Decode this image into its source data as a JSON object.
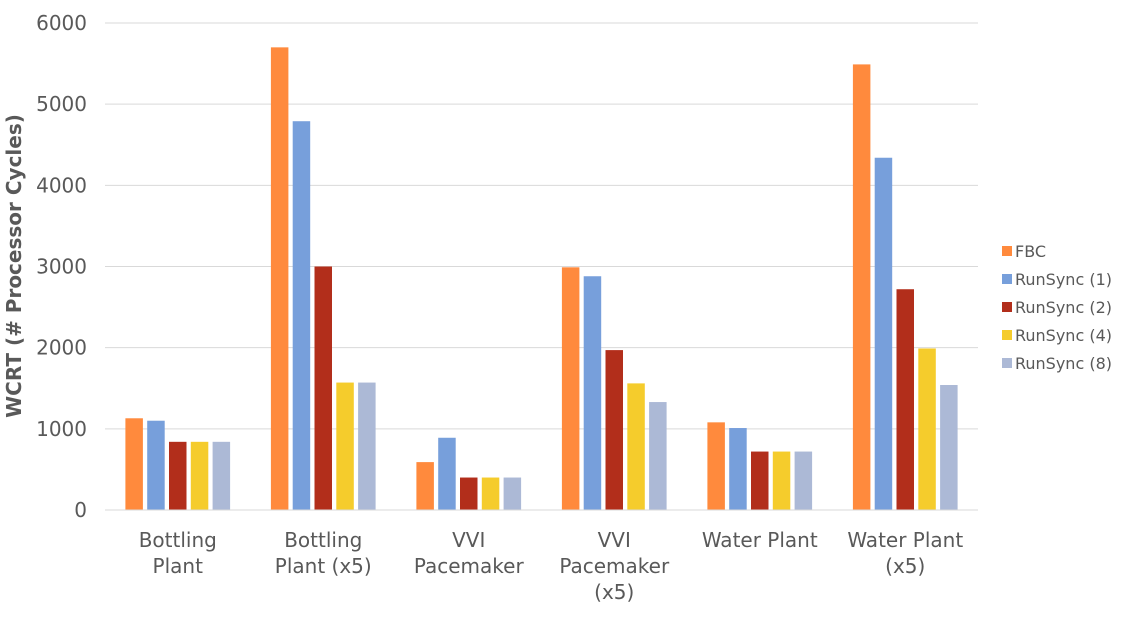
{
  "chart_data": {
    "type": "bar",
    "title": "",
    "xlabel": "",
    "ylabel": "WCRT (# Processor Cycles)",
    "ylim": [
      0,
      6000
    ],
    "yticks": [
      0,
      1000,
      2000,
      3000,
      4000,
      5000,
      6000
    ],
    "grid": true,
    "legend_position": "right",
    "categories": [
      [
        "Bottling",
        "Plant"
      ],
      [
        "Bottling",
        "Plant (x5)"
      ],
      [
        "VVI",
        "Pacemaker"
      ],
      [
        "VVI",
        "Pacemaker",
        "(x5)"
      ],
      [
        "Water Plant"
      ],
      [
        "Water Plant",
        "(x5)"
      ]
    ],
    "series": [
      {
        "name": "FBC",
        "color": "#FF8A3D",
        "values": [
          1130,
          5700,
          590,
          2990,
          1080,
          5490
        ]
      },
      {
        "name": "RunSync (1)",
        "color": "#779FDB",
        "values": [
          1100,
          4790,
          890,
          2880,
          1010,
          4340
        ]
      },
      {
        "name": "RunSync (2)",
        "color": "#B22E1B",
        "values": [
          840,
          3000,
          400,
          1970,
          720,
          2720
        ]
      },
      {
        "name": "RunSync (4)",
        "color": "#F5CC2C",
        "values": [
          840,
          1570,
          400,
          1560,
          720,
          1990
        ]
      },
      {
        "name": "RunSync (8)",
        "color": "#ACB9D6",
        "values": [
          840,
          1570,
          400,
          1330,
          720,
          1540
        ]
      }
    ]
  }
}
